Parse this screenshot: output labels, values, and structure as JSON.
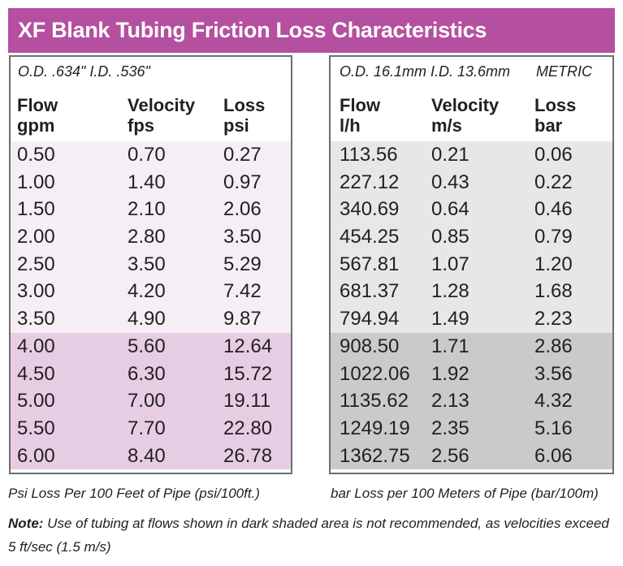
{
  "title": "XF Blank Tubing Friction Loss Characteristics",
  "imperial": {
    "spec": "O.D. .634\" I.D. .536\"",
    "headers": [
      {
        "line1": "Flow",
        "line2": "gpm"
      },
      {
        "line1": "Velocity",
        "line2": "fps"
      },
      {
        "line1": "Loss",
        "line2": "psi"
      }
    ],
    "rows": [
      [
        "0.50",
        "0.70",
        "0.27"
      ],
      [
        "1.00",
        "1.40",
        "0.97"
      ],
      [
        "1.50",
        "2.10",
        "2.06"
      ],
      [
        "2.00",
        "2.80",
        "3.50"
      ],
      [
        "2.50",
        "3.50",
        "5.29"
      ],
      [
        "3.00",
        "4.20",
        "7.42"
      ],
      [
        "3.50",
        "4.90",
        "9.87"
      ],
      [
        "4.00",
        "5.60",
        "12.64"
      ],
      [
        "4.50",
        "6.30",
        "15.72"
      ],
      [
        "5.00",
        "7.00",
        "19.11"
      ],
      [
        "5.50",
        "7.70",
        "22.80"
      ],
      [
        "6.00",
        "8.40",
        "26.78"
      ]
    ],
    "footer": "Psi Loss Per 100 Feet of Pipe (psi/100ft.)"
  },
  "metric": {
    "spec": "O.D. 16.1mm I.D. 13.6mm",
    "label": "METRIC",
    "headers": [
      {
        "line1": "Flow",
        "line2": "l/h"
      },
      {
        "line1": "Velocity",
        "line2": "m/s"
      },
      {
        "line1": "Loss",
        "line2": "bar"
      }
    ],
    "rows": [
      [
        "113.56",
        "0.21",
        "0.06"
      ],
      [
        "227.12",
        "0.43",
        "0.22"
      ],
      [
        "340.69",
        "0.64",
        "0.46"
      ],
      [
        "454.25",
        "0.85",
        "0.79"
      ],
      [
        "567.81",
        "1.07",
        "1.20"
      ],
      [
        "681.37",
        "1.28",
        "1.68"
      ],
      [
        "794.94",
        "1.49",
        "2.23"
      ],
      [
        "908.50",
        "1.71",
        "2.86"
      ],
      [
        "1022.06",
        "1.92",
        "3.56"
      ],
      [
        "1135.62",
        "2.13",
        "4.32"
      ],
      [
        "1249.19",
        "2.35",
        "5.16"
      ],
      [
        "1362.75",
        "2.56",
        "6.06"
      ]
    ],
    "footer": "bar Loss per 100 Meters of Pipe (bar/100m)"
  },
  "dark_shaded_from_row": 7,
  "colors": {
    "title_bg": "#b54fa0",
    "imperial_light": "#f6eef5",
    "imperial_dark": "#e7cde3",
    "metric_light": "#e6e7e8",
    "metric_dark": "#c9cacc"
  },
  "note": {
    "label": "Note:",
    "text": " Use of tubing at flows shown in dark shaded area is not recommended, as velocities exceed 5 ft/sec (1.5 m/s)"
  }
}
